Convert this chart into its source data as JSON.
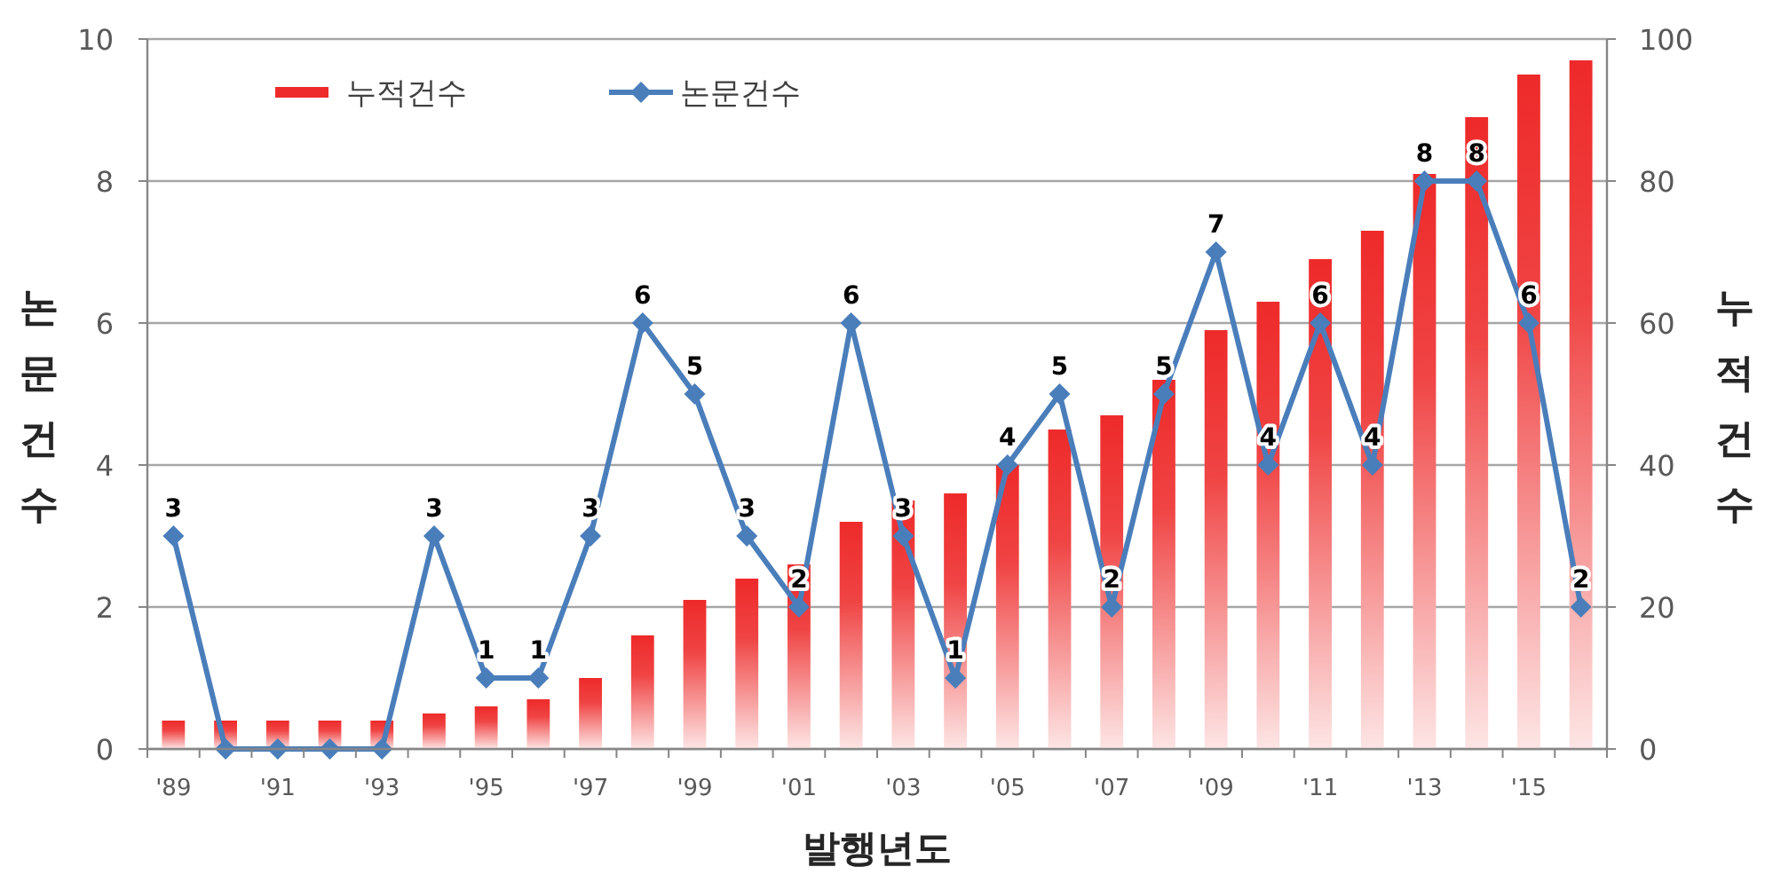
{
  "chart_data": {
    "type": "bar",
    "categories": [
      "'89",
      null,
      "'91",
      null,
      "'93",
      null,
      "'95",
      null,
      "'97",
      null,
      "'99",
      null,
      "'01",
      null,
      "'03",
      null,
      "'05",
      null,
      "'07",
      null,
      "'09",
      null,
      "'11",
      null,
      "'13",
      null,
      "'15",
      null
    ],
    "xlabel": "발행년도",
    "ylabel": "논문건수",
    "y2label": "누적건수",
    "ylim": [
      0,
      10
    ],
    "yticks": [
      0,
      2,
      4,
      6,
      8,
      10
    ],
    "y2lim": [
      0,
      100
    ],
    "y2ticks": [
      0,
      20,
      40,
      60,
      80,
      100
    ],
    "grid": "y",
    "legend": "top left",
    "series": [
      {
        "name": "누적건수",
        "axis": "y2",
        "color": "#ee2a2a",
        "values": [
          4,
          4,
          4,
          4,
          4,
          5,
          6,
          7,
          10,
          16,
          21,
          24,
          26,
          32,
          35,
          36,
          40,
          45,
          47,
          52,
          59,
          63,
          69,
          73,
          81,
          89,
          95,
          97
        ]
      },
      {
        "name": "논문건수",
        "type": "line",
        "color": "#4a7ebb",
        "marker": "diamond",
        "values": [
          3,
          0,
          0,
          0,
          0,
          3,
          1,
          1,
          3,
          6,
          5,
          3,
          2,
          6,
          3,
          1,
          4,
          5,
          2,
          5,
          7,
          4,
          6,
          4,
          8,
          8,
          6,
          2
        ],
        "value_labels": [
          "3",
          null,
          null,
          null,
          null,
          "3",
          "1",
          "1",
          "3",
          "6",
          "5",
          "3",
          "2",
          "6",
          "3",
          "1",
          "4",
          "5",
          "2",
          "5",
          "7",
          "4",
          "6",
          "4",
          "8",
          "8",
          "6",
          "2"
        ]
      }
    ]
  }
}
